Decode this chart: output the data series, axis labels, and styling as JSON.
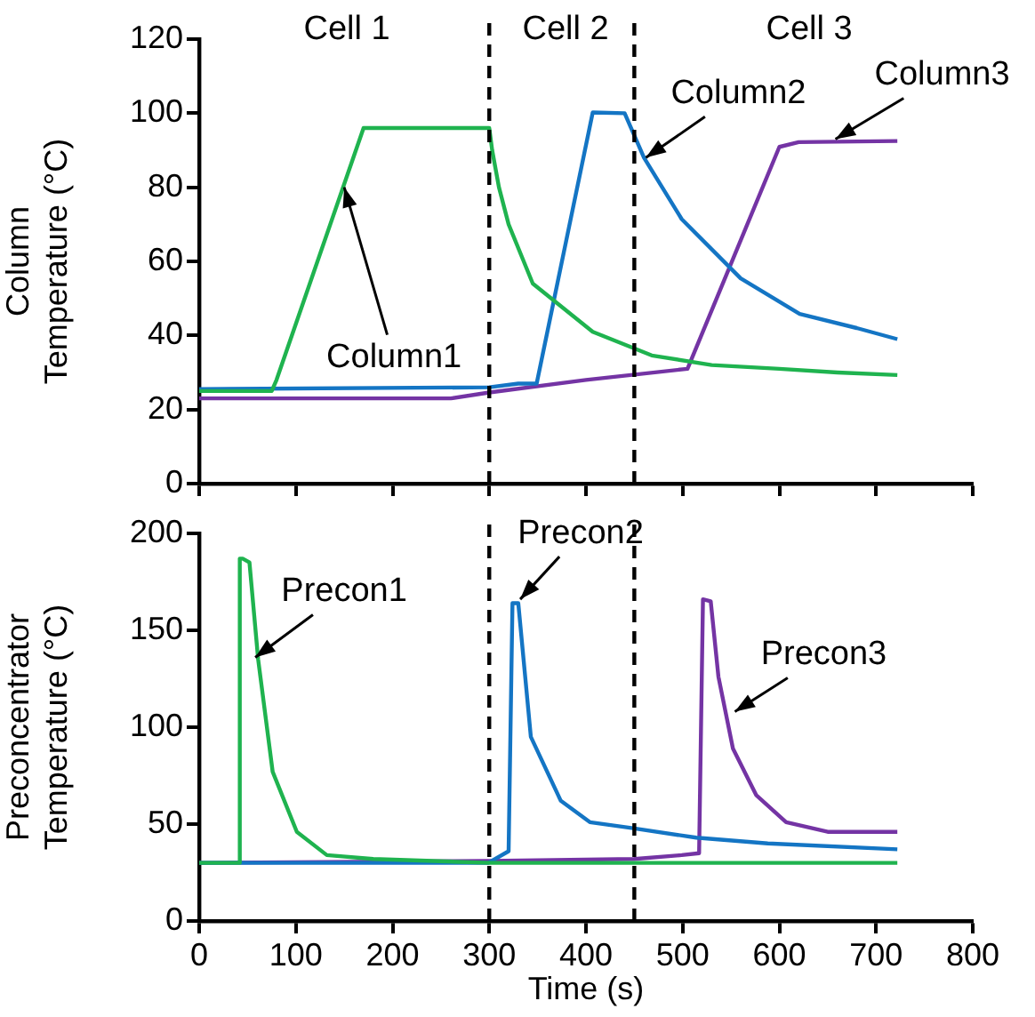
{
  "chart_data": [
    {
      "type": "line",
      "ylabel": "Column Temperature (°C)",
      "xlim": [
        0,
        800
      ],
      "xticks": [
        0,
        100,
        200,
        300,
        400,
        500,
        600,
        700,
        800
      ],
      "ylim": [
        0,
        120
      ],
      "yticks": [
        0,
        20,
        40,
        60,
        80,
        100,
        120
      ],
      "tick_labels": "y",
      "grid": false,
      "legend": false,
      "marker": "none",
      "line_style": "solid",
      "ref_lines": [
        {
          "axis": "x",
          "value": 300,
          "color": "#000000",
          "line_style": "dashed"
        },
        {
          "axis": "x",
          "value": 450,
          "color": "#000000",
          "line_style": "dashed"
        }
      ],
      "annotations": [
        "Cell 1",
        "Cell 2",
        "Cell 3",
        {
          "text": "Column1",
          "x": 150,
          "y": 80
        },
        {
          "text": "Column2",
          "x": 462,
          "y": 88
        },
        {
          "text": "Column3",
          "x": 658,
          "y": 93
        }
      ],
      "series": [
        {
          "color": "#1fb34f",
          "x": [
            0,
            75,
            80,
            170,
            300,
            303,
            310,
            320,
            345,
            407,
            468,
            530,
            600,
            660,
            722
          ],
          "values": [
            25,
            25,
            28,
            96,
            96,
            90,
            80,
            70,
            54,
            41,
            34.6,
            32,
            31,
            30,
            29.3
          ]
        },
        {
          "color": "#1475c4",
          "x": [
            0,
            300,
            330,
            349,
            407,
            440,
            460,
            499,
            560,
            621,
            680,
            722
          ],
          "values": [
            25.5,
            26,
            27,
            27,
            100.2,
            100,
            88,
            71.4,
            55.4,
            45.8,
            42,
            39
          ]
        },
        {
          "color": "#7434a4",
          "x": [
            0,
            260,
            300,
            400,
            505,
            600,
            620,
            722
          ],
          "values": [
            23,
            23,
            24.6,
            28,
            31,
            90.9,
            92.2,
            92.5
          ]
        }
      ]
    },
    {
      "type": "line",
      "ylabel": "Preconcentrator Temperature (°C)",
      "xlabel": "Time (s)",
      "xlim": [
        0,
        800
      ],
      "xticks": [
        0,
        100,
        200,
        300,
        400,
        500,
        600,
        700,
        800
      ],
      "ylim": [
        0,
        200
      ],
      "yticks": [
        0,
        50,
        100,
        150,
        200
      ],
      "grid": false,
      "legend": false,
      "marker": "none",
      "line_style": "solid",
      "ref_lines": [
        {
          "axis": "x",
          "value": 300,
          "color": "#000000",
          "line_style": "dashed"
        },
        {
          "axis": "x",
          "value": 450,
          "color": "#000000",
          "line_style": "dashed"
        }
      ],
      "annotations": [
        {
          "text": "Precon1",
          "x": 58,
          "y": 136
        },
        {
          "text": "Precon2",
          "x": 332,
          "y": 166
        },
        {
          "text": "Precon3",
          "x": 554,
          "y": 108
        }
      ],
      "series": [
        {
          "color": "#1fb34f",
          "x": [
            0,
            41,
            42,
            45,
            52,
            61,
            76,
            101,
            132,
            180,
            300,
            722
          ],
          "values": [
            30,
            30,
            187,
            187,
            185,
            135,
            77,
            46,
            34,
            32,
            30,
            30
          ]
        },
        {
          "color": "#1475c4",
          "x": [
            0,
            299,
            320,
            324,
            330,
            343,
            374,
            404,
            447,
            514,
            588,
            722
          ],
          "values": [
            30,
            30,
            36,
            164,
            164,
            95,
            62,
            51,
            48,
            43,
            40,
            37
          ]
        },
        {
          "color": "#7434a4",
          "x": [
            0,
            300,
            450,
            499,
            517,
            521,
            529,
            537,
            552,
            576,
            607,
            650,
            722
          ],
          "values": [
            30,
            31,
            32,
            34,
            35,
            166,
            165,
            126,
            89,
            65,
            51,
            46,
            46
          ]
        }
      ]
    }
  ]
}
